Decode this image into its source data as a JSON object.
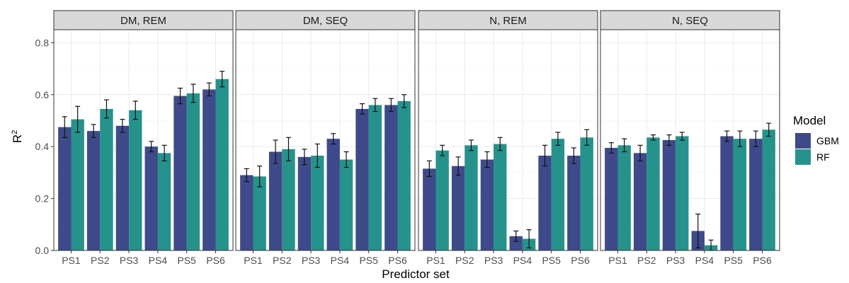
{
  "chart_data": {
    "type": "bar",
    "xlabel": "Predictor set",
    "ylabel": "R",
    "ylabel_sup": "2",
    "ylim": [
      0,
      0.85
    ],
    "yticks": [
      0.0,
      0.2,
      0.4,
      0.6,
      0.8
    ],
    "ytick_labels": [
      "0.0",
      "0.2",
      "0.4",
      "0.6",
      "0.8"
    ],
    "categories": [
      "PS1",
      "PS2",
      "PS3",
      "PS4",
      "PS5",
      "PS6"
    ],
    "grid": true,
    "legend": {
      "title": "Model",
      "position": "right",
      "entries": [
        {
          "name": "GBM",
          "color": "#3e4a89"
        },
        {
          "name": "RF",
          "color": "#26928c"
        }
      ]
    },
    "facets": [
      {
        "label": "DM, REM",
        "series": [
          {
            "name": "GBM",
            "values": [
              0.475,
              0.46,
              0.48,
              0.4,
              0.595,
              0.62
            ],
            "err": [
              0.04,
              0.025,
              0.025,
              0.02,
              0.03,
              0.025
            ]
          },
          {
            "name": "RF",
            "values": [
              0.505,
              0.545,
              0.54,
              0.375,
              0.605,
              0.66
            ],
            "err": [
              0.05,
              0.035,
              0.035,
              0.03,
              0.035,
              0.03
            ]
          }
        ]
      },
      {
        "label": "DM, SEQ",
        "series": [
          {
            "name": "GBM",
            "values": [
              0.29,
              0.38,
              0.36,
              0.43,
              0.545,
              0.56
            ],
            "err": [
              0.025,
              0.045,
              0.03,
              0.02,
              0.02,
              0.025
            ]
          },
          {
            "name": "RF",
            "values": [
              0.285,
              0.39,
              0.365,
              0.35,
              0.56,
              0.575
            ],
            "err": [
              0.04,
              0.045,
              0.045,
              0.03,
              0.025,
              0.025
            ]
          }
        ]
      },
      {
        "label": "N, REM",
        "series": [
          {
            "name": "GBM",
            "values": [
              0.315,
              0.325,
              0.35,
              0.055,
              0.365,
              0.365
            ],
            "err": [
              0.03,
              0.035,
              0.03,
              0.02,
              0.04,
              0.03
            ]
          },
          {
            "name": "RF",
            "values": [
              0.385,
              0.405,
              0.41,
              0.045,
              0.43,
              0.435
            ],
            "err": [
              0.02,
              0.02,
              0.025,
              0.035,
              0.025,
              0.03
            ]
          }
        ]
      },
      {
        "label": "N, SEQ",
        "series": [
          {
            "name": "GBM",
            "values": [
              0.395,
              0.375,
              0.425,
              0.075,
              0.44,
              0.43
            ],
            "err": [
              0.02,
              0.03,
              0.02,
              0.065,
              0.02,
              0.03
            ]
          },
          {
            "name": "RF",
            "values": [
              0.405,
              0.435,
              0.44,
              0.02,
              0.43,
              0.465
            ],
            "err": [
              0.025,
              0.01,
              0.015,
              0.02,
              0.03,
              0.025
            ]
          }
        ]
      }
    ]
  }
}
